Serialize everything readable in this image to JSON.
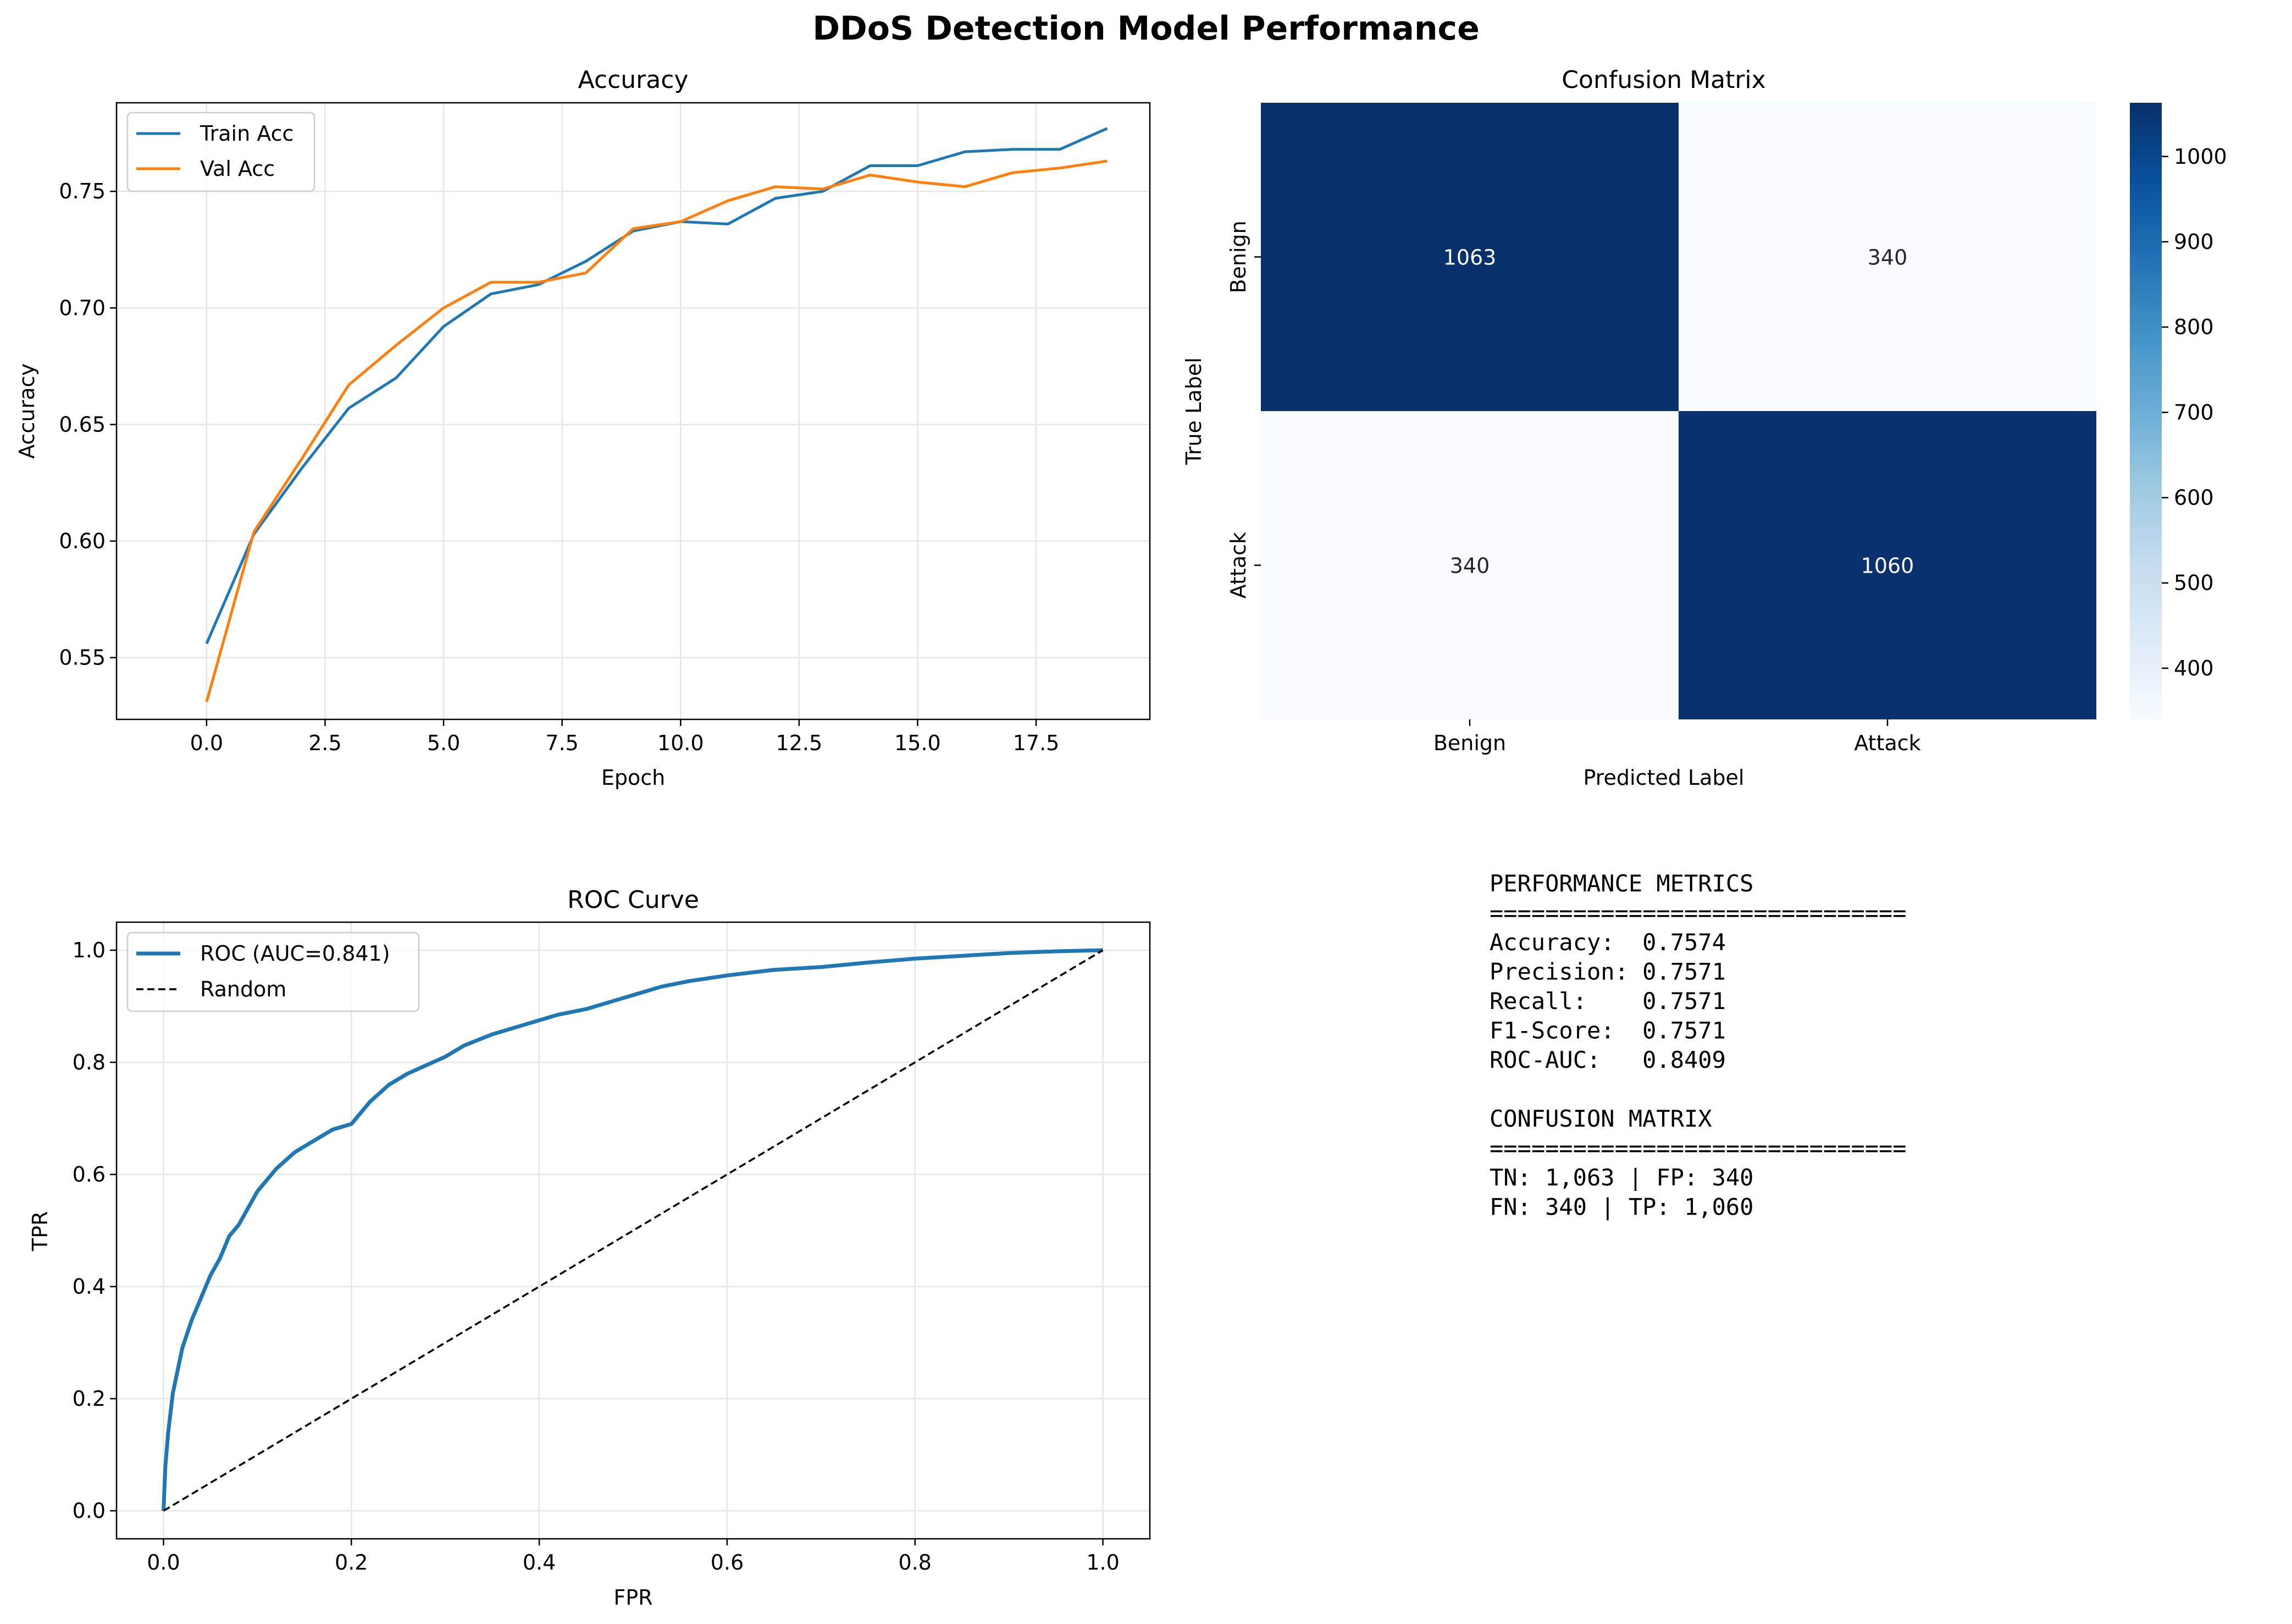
{
  "figure": {
    "title": "DDoS Detection Model Performance"
  },
  "colors": {
    "train": "#1f77b4",
    "val": "#ff7f0e",
    "roc": "#1f77b4",
    "random": "#000000",
    "grid": "#e6e6e6"
  },
  "chart_data": [
    {
      "type": "line",
      "title": "Accuracy",
      "xlabel": "Epoch",
      "ylabel": "Accuracy",
      "xlim": [
        -1.9,
        19.9
      ],
      "ylim": [
        0.5235,
        0.788
      ],
      "xticks": [
        0.0,
        2.5,
        5.0,
        7.5,
        10.0,
        12.5,
        15.0,
        17.5
      ],
      "xtick_labels": [
        "0.0",
        "2.5",
        "5.0",
        "7.5",
        "10.0",
        "12.5",
        "15.0",
        "17.5"
      ],
      "yticks": [
        0.55,
        0.6,
        0.65,
        0.7,
        0.75
      ],
      "ytick_labels": [
        "0.55",
        "0.60",
        "0.65",
        "0.70",
        "0.75"
      ],
      "grid": true,
      "legend": "top-left",
      "x": [
        0,
        1,
        2,
        3,
        4,
        5,
        6,
        7,
        8,
        9,
        10,
        11,
        12,
        13,
        14,
        15,
        16,
        17,
        18,
        19
      ],
      "series": [
        {
          "name": "Train Acc",
          "color": "#1f77b4",
          "values": [
            0.556,
            0.603,
            0.631,
            0.657,
            0.67,
            0.692,
            0.706,
            0.71,
            0.72,
            0.733,
            0.737,
            0.736,
            0.747,
            0.75,
            0.761,
            0.761,
            0.767,
            0.768,
            0.768,
            0.777
          ]
        },
        {
          "name": "Val Acc",
          "color": "#ff7f0e",
          "values": [
            0.531,
            0.604,
            0.635,
            0.667,
            0.684,
            0.7,
            0.711,
            0.711,
            0.715,
            0.734,
            0.737,
            0.746,
            0.752,
            0.751,
            0.757,
            0.754,
            0.752,
            0.758,
            0.76,
            0.763
          ]
        }
      ]
    },
    {
      "type": "heatmap",
      "title": "Confusion Matrix",
      "xlabel": "Predicted Label",
      "ylabel": "True Label",
      "x_categories": [
        "Benign",
        "Attack"
      ],
      "y_categories": [
        "Benign",
        "Attack"
      ],
      "values": [
        [
          1063,
          340
        ],
        [
          340,
          1060
        ]
      ],
      "colormap": "Blues",
      "colorbar_range": [
        340,
        1063
      ],
      "colorbar_ticks": [
        400,
        500,
        600,
        700,
        800,
        900,
        1000
      ],
      "colorbar_tick_labels": [
        "400",
        "500",
        "600",
        "700",
        "800",
        "900",
        "1000"
      ]
    },
    {
      "type": "line",
      "title": "ROC Curve",
      "xlabel": "FPR",
      "ylabel": "TPR",
      "xlim": [
        -0.05,
        1.05
      ],
      "ylim": [
        -0.05,
        1.05
      ],
      "xticks": [
        0.0,
        0.2,
        0.4,
        0.6,
        0.8,
        1.0
      ],
      "xtick_labels": [
        "0.0",
        "0.2",
        "0.4",
        "0.6",
        "0.8",
        "1.0"
      ],
      "yticks": [
        0.0,
        0.2,
        0.4,
        0.6,
        0.8,
        1.0
      ],
      "ytick_labels": [
        "0.0",
        "0.2",
        "0.4",
        "0.6",
        "0.8",
        "1.0"
      ],
      "grid": true,
      "legend": "top-left",
      "series": [
        {
          "name": "ROC (AUC=0.841)",
          "color": "#1f77b4",
          "style": "solid",
          "x": [
            0,
            0.002,
            0.005,
            0.01,
            0.015,
            0.02,
            0.03,
            0.04,
            0.05,
            0.06,
            0.07,
            0.08,
            0.09,
            0.1,
            0.12,
            0.14,
            0.16,
            0.18,
            0.2,
            0.21,
            0.22,
            0.24,
            0.26,
            0.28,
            0.3,
            0.32,
            0.35,
            0.38,
            0.4,
            0.42,
            0.45,
            0.48,
            0.5,
            0.53,
            0.56,
            0.58,
            0.6,
            0.65,
            0.7,
            0.75,
            0.8,
            0.85,
            0.9,
            0.95,
            1.0
          ],
          "y": [
            0,
            0.08,
            0.14,
            0.21,
            0.25,
            0.29,
            0.34,
            0.38,
            0.42,
            0.45,
            0.49,
            0.51,
            0.54,
            0.57,
            0.61,
            0.64,
            0.66,
            0.68,
            0.69,
            0.71,
            0.73,
            0.76,
            0.78,
            0.795,
            0.81,
            0.83,
            0.85,
            0.865,
            0.875,
            0.885,
            0.895,
            0.91,
            0.92,
            0.935,
            0.945,
            0.95,
            0.955,
            0.965,
            0.97,
            0.978,
            0.985,
            0.99,
            0.995,
            0.998,
            1.0
          ]
        },
        {
          "name": "Random",
          "color": "#000000",
          "style": "dashed",
          "x": [
            0,
            1
          ],
          "y": [
            0,
            1
          ]
        }
      ]
    }
  ],
  "metrics_panel": {
    "lines": [
      "PERFORMANCE METRICS",
      "==============================",
      "Accuracy:  0.7574",
      "Precision: 0.7571",
      "Recall:    0.7571",
      "F1-Score:  0.7571",
      "ROC-AUC:   0.8409",
      "",
      "CONFUSION MATRIX",
      "==============================",
      "TN: 1,063 | FP: 340",
      "FN: 340 | TP: 1,060"
    ]
  }
}
